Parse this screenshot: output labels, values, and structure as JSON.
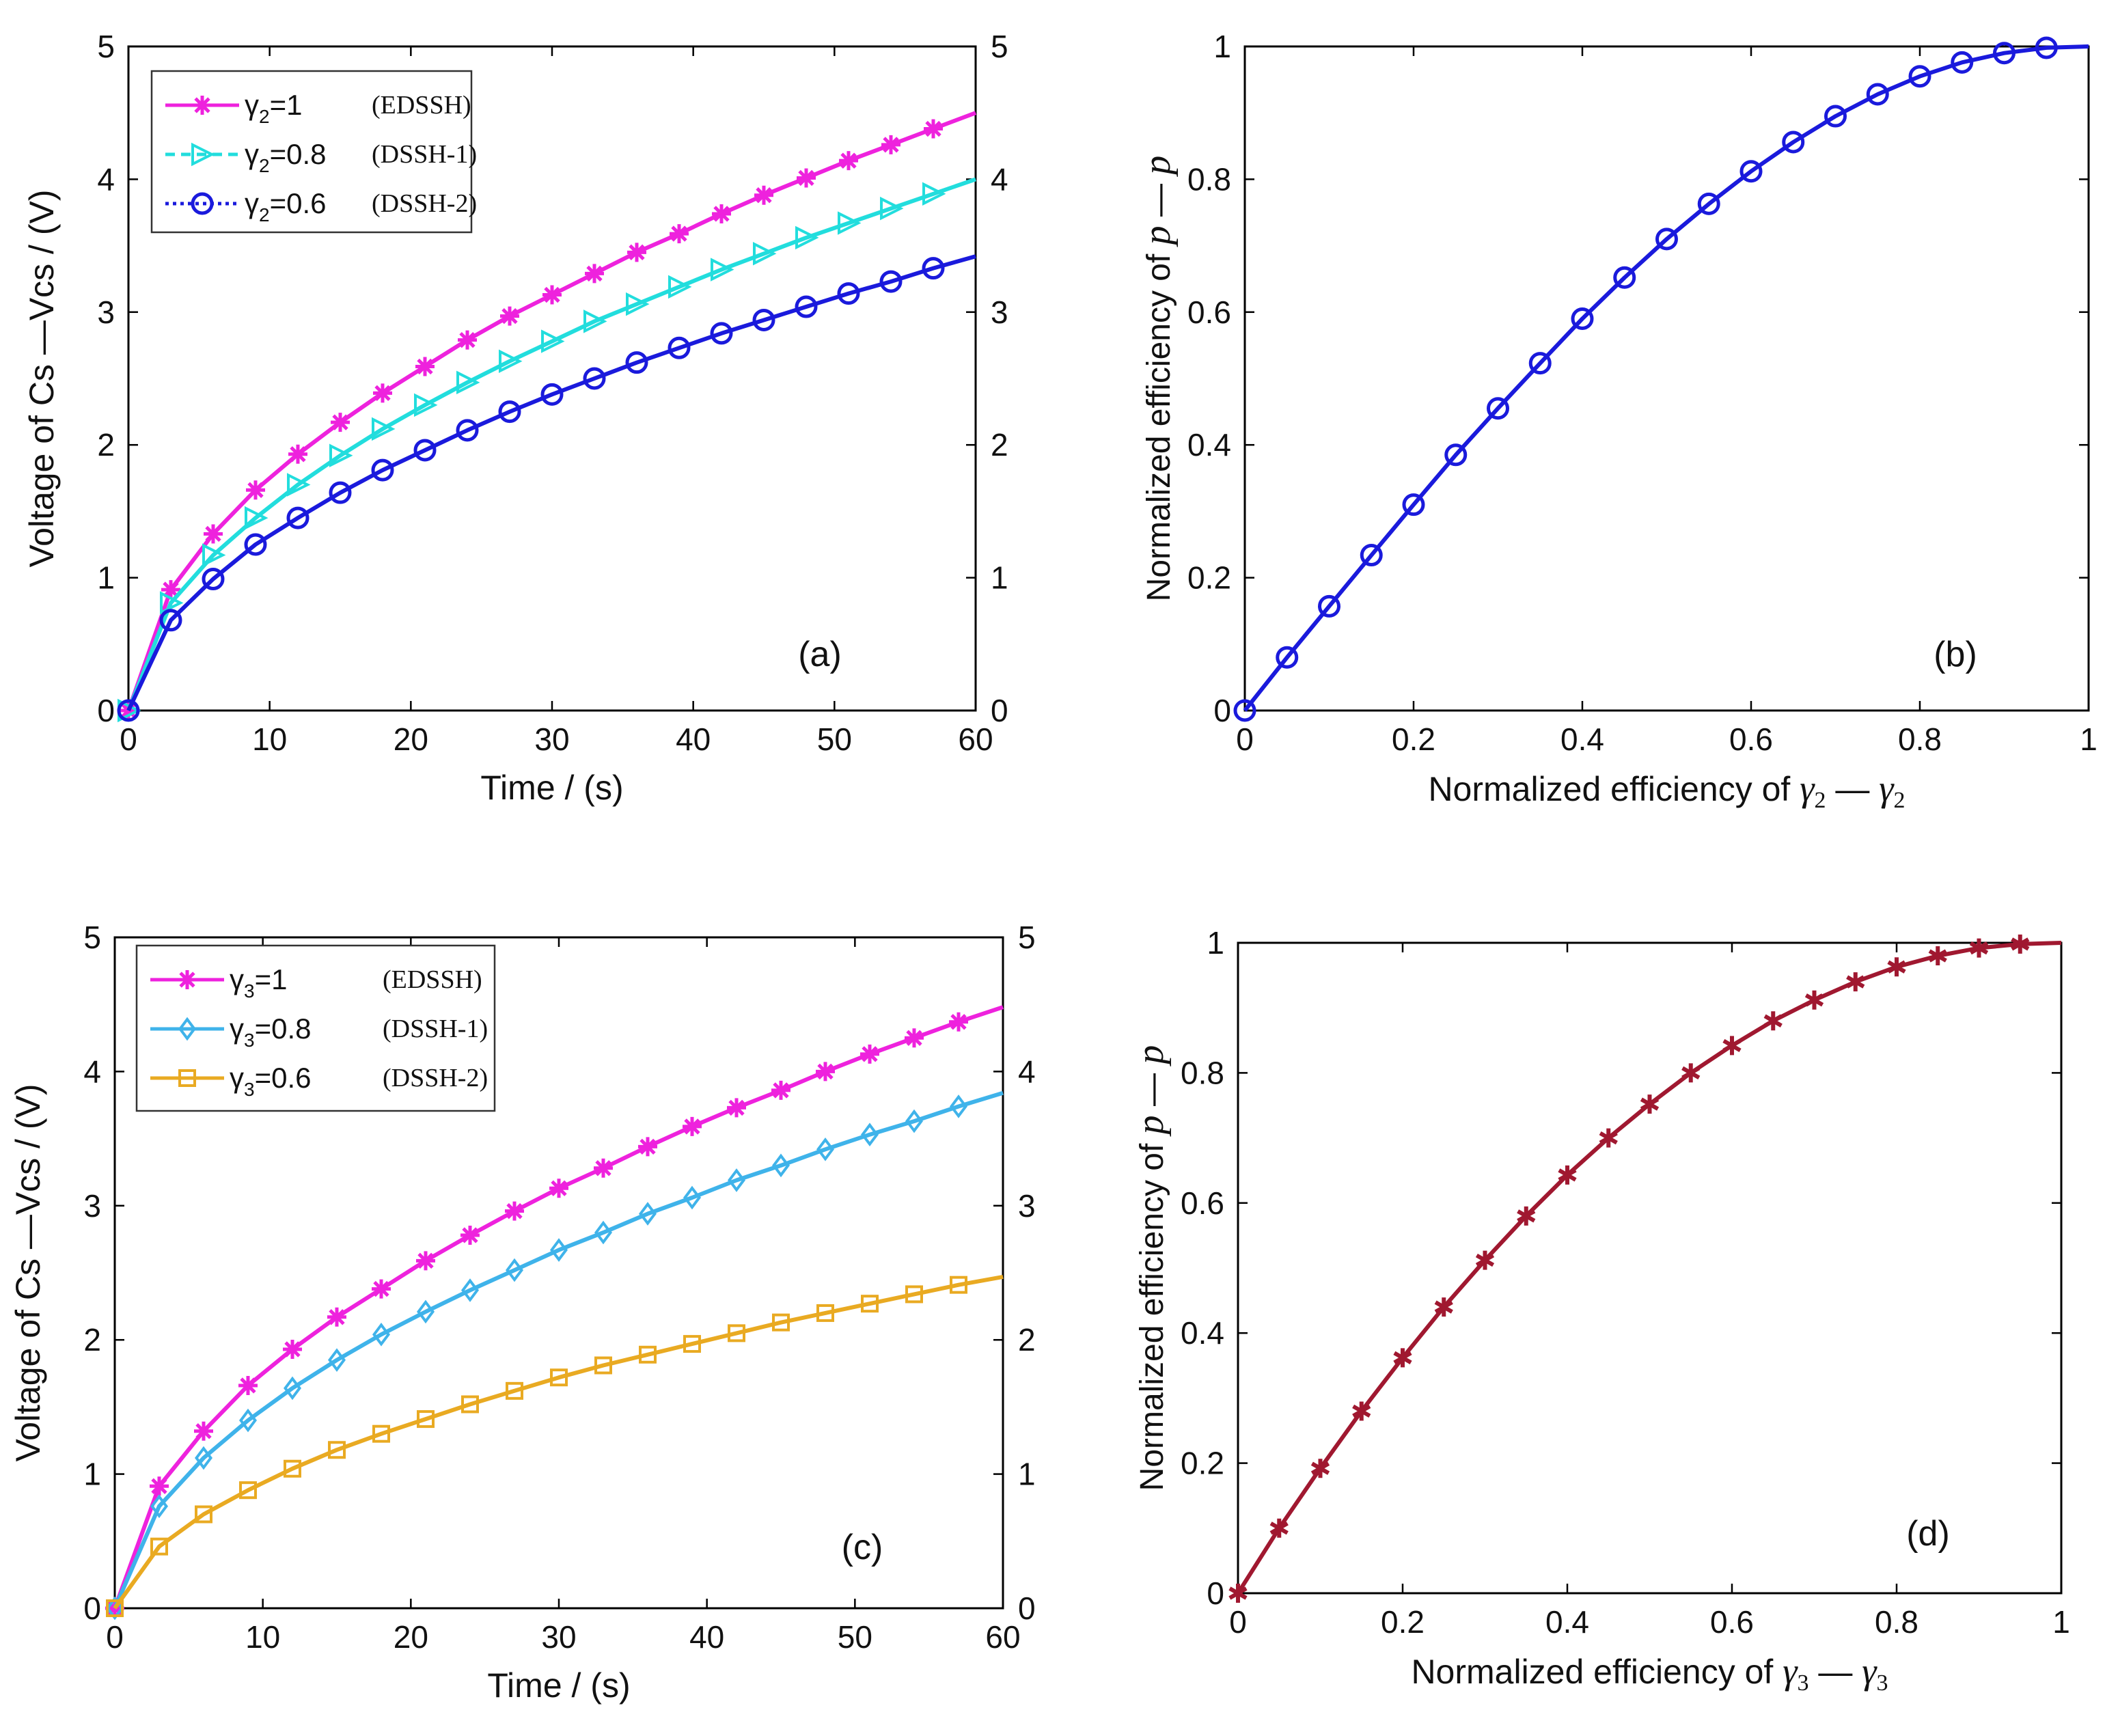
{
  "chart_data": [
    {
      "panel": "a",
      "type": "line",
      "panel_label": "(a)",
      "title": "",
      "xlabel": "Time / (s)",
      "ylabel": "Voltage  of  Cs —Vcs / (V)",
      "xlim": [
        0,
        60
      ],
      "ylim": [
        0,
        5
      ],
      "xticks": [
        "0",
        "10",
        "20",
        "30",
        "40",
        "50",
        "60"
      ],
      "yticks": [
        "0",
        "1",
        "2",
        "3",
        "4",
        "5"
      ],
      "right_yticks": [
        "0",
        "1",
        "2",
        "3",
        "4",
        "5"
      ],
      "grid": false,
      "legend_position": "top-left",
      "series": [
        {
          "sym": "γ",
          "sub": "2",
          "name": "=1",
          "tag": "(EDSSH)",
          "color": "#ee22dd",
          "marker": "asterisk",
          "dash": "solid",
          "x": [
            0,
            3,
            6,
            9,
            12,
            15,
            18,
            21,
            24,
            27,
            30,
            33,
            36,
            39,
            42,
            45,
            48,
            51,
            54,
            57,
            60
          ],
          "y": [
            0,
            0.91,
            1.33,
            1.66,
            1.93,
            2.17,
            2.39,
            2.59,
            2.79,
            2.97,
            3.13,
            3.29,
            3.45,
            3.59,
            3.74,
            3.88,
            4.01,
            4.14,
            4.26,
            4.38,
            4.5
          ]
        },
        {
          "sym": "γ",
          "sub": "2",
          "name": "=0.8",
          "tag": "(DSSH-1)",
          "color": "#22dddd",
          "marker": "triangle-right",
          "dash": "dashed",
          "x": [
            0,
            3,
            6,
            9,
            12,
            15,
            18,
            21,
            24,
            27,
            30,
            33,
            36,
            39,
            42,
            45,
            48,
            51,
            54,
            57,
            60
          ],
          "y": [
            0,
            0.81,
            1.17,
            1.45,
            1.7,
            1.92,
            2.12,
            2.3,
            2.47,
            2.63,
            2.78,
            2.93,
            3.06,
            3.19,
            3.32,
            3.44,
            3.56,
            3.67,
            3.78,
            3.89,
            4.0
          ]
        },
        {
          "sym": "γ",
          "sub": "2",
          "name": "=0.6",
          "tag": "(DSSH-2)",
          "color": "#1a1adc",
          "marker": "circle",
          "dash": "dotted",
          "x": [
            0,
            3,
            6,
            9,
            12,
            15,
            18,
            21,
            24,
            27,
            30,
            33,
            36,
            39,
            42,
            45,
            48,
            51,
            54,
            57,
            60
          ],
          "y": [
            0,
            0.68,
            0.99,
            1.25,
            1.45,
            1.64,
            1.81,
            1.96,
            2.11,
            2.25,
            2.38,
            2.5,
            2.62,
            2.73,
            2.84,
            2.94,
            3.04,
            3.14,
            3.23,
            3.33,
            3.42
          ]
        }
      ]
    },
    {
      "panel": "b",
      "type": "line",
      "panel_label": "(b)",
      "title": "",
      "xlabel_text": "Normalized efficiency of ",
      "xlabel_math": {
        "sym": "γ",
        "sub": "2"
      },
      "ylabel_text": "Normalized efficiency of ",
      "ylabel_math": "p",
      "xlim": [
        0,
        1
      ],
      "ylim": [
        0,
        1
      ],
      "xticks": [
        "0",
        "0.2",
        "0.4",
        "0.6",
        "0.8",
        "1"
      ],
      "yticks": [
        "0",
        "0.2",
        "0.4",
        "0.6",
        "0.8",
        "1"
      ],
      "grid": false,
      "series": [
        {
          "color": "#1a1adc",
          "marker": "circle",
          "x": [
            0,
            0.05,
            0.1,
            0.15,
            0.2,
            0.25,
            0.3,
            0.35,
            0.4,
            0.45,
            0.5,
            0.55,
            0.6,
            0.65,
            0.7,
            0.75,
            0.8,
            0.85,
            0.9,
            0.95
          ],
          "y": [
            0,
            0.08,
            0.157,
            0.234,
            0.31,
            0.385,
            0.455,
            0.523,
            0.59,
            0.652,
            0.71,
            0.763,
            0.812,
            0.856,
            0.895,
            0.928,
            0.955,
            0.976,
            0.99,
            0.998
          ],
          "line_end": [
            1,
            1
          ]
        }
      ]
    },
    {
      "panel": "c",
      "type": "line",
      "panel_label": "(c)",
      "title": "",
      "xlabel": "Time / (s)",
      "ylabel": "Voltage  of  Cs —Vcs / (V)",
      "xlim": [
        0,
        60
      ],
      "ylim": [
        0,
        5
      ],
      "xticks": [
        "0",
        "10",
        "20",
        "30",
        "40",
        "50",
        "60"
      ],
      "yticks": [
        "0",
        "1",
        "2",
        "3",
        "4",
        "5"
      ],
      "right_yticks": [
        "0",
        "1",
        "2",
        "3",
        "4",
        "5"
      ],
      "grid": false,
      "legend_position": "top-left",
      "series": [
        {
          "sym": "γ",
          "sub": "3",
          "name": "=1",
          "tag": "(EDSSH)",
          "color": "#ee22dd",
          "marker": "asterisk",
          "dash": "solid",
          "x": [
            0,
            3,
            6,
            9,
            12,
            15,
            18,
            21,
            24,
            27,
            30,
            33,
            36,
            39,
            42,
            45,
            48,
            51,
            54,
            57,
            60
          ],
          "y": [
            0,
            0.91,
            1.32,
            1.66,
            1.93,
            2.17,
            2.38,
            2.59,
            2.78,
            2.96,
            3.13,
            3.28,
            3.44,
            3.59,
            3.73,
            3.86,
            4.0,
            4.13,
            4.25,
            4.37,
            4.48
          ]
        },
        {
          "sym": "γ",
          "sub": "3",
          "name": "=0.8",
          "tag": "(DSSH-1)",
          "color": "#3fb3ea",
          "marker": "diamond",
          "dash": "solid",
          "x": [
            0,
            3,
            6,
            9,
            12,
            15,
            18,
            21,
            24,
            27,
            30,
            33,
            36,
            39,
            42,
            45,
            48,
            51,
            54,
            57,
            60
          ],
          "y": [
            0,
            0.76,
            1.12,
            1.4,
            1.64,
            1.85,
            2.04,
            2.21,
            2.37,
            2.52,
            2.67,
            2.8,
            2.94,
            3.06,
            3.19,
            3.3,
            3.42,
            3.53,
            3.63,
            3.74,
            3.84
          ]
        },
        {
          "sym": "γ",
          "sub": "3",
          "name": "=0.6",
          "tag": "(DSSH-2)",
          "color": "#e9aa22",
          "marker": "square",
          "dash": "solid",
          "x": [
            0,
            3,
            6,
            9,
            12,
            15,
            18,
            21,
            24,
            27,
            30,
            33,
            36,
            39,
            42,
            45,
            48,
            51,
            54,
            57,
            60
          ],
          "y": [
            0,
            0.46,
            0.7,
            0.88,
            1.04,
            1.18,
            1.3,
            1.41,
            1.52,
            1.62,
            1.72,
            1.81,
            1.89,
            1.97,
            2.05,
            2.13,
            2.2,
            2.27,
            2.34,
            2.41,
            2.47
          ]
        }
      ]
    },
    {
      "panel": "d",
      "type": "line",
      "panel_label": "(d)",
      "title": "",
      "xlabel_text": "Normalized efficiency of ",
      "xlabel_math": {
        "sym": "γ",
        "sub": "3"
      },
      "ylabel_text": "Normalized efficiency of ",
      "ylabel_math": "p",
      "xlim": [
        0,
        1
      ],
      "ylim": [
        0,
        1
      ],
      "xticks": [
        "0",
        "0.2",
        "0.4",
        "0.6",
        "0.8",
        "1"
      ],
      "yticks": [
        "0",
        "0.2",
        "0.4",
        "0.6",
        "0.8",
        "1"
      ],
      "grid": false,
      "series": [
        {
          "color": "#a01830",
          "marker": "star",
          "x": [
            0,
            0.05,
            0.1,
            0.15,
            0.2,
            0.25,
            0.3,
            0.35,
            0.4,
            0.45,
            0.5,
            0.55,
            0.6,
            0.65,
            0.7,
            0.75,
            0.8,
            0.85,
            0.9,
            0.95
          ],
          "y": [
            0,
            0.1,
            0.192,
            0.28,
            0.362,
            0.44,
            0.512,
            0.58,
            0.643,
            0.7,
            0.752,
            0.8,
            0.842,
            0.88,
            0.912,
            0.94,
            0.963,
            0.98,
            0.992,
            0.998
          ],
          "line_end": [
            1,
            1
          ]
        }
      ]
    }
  ]
}
